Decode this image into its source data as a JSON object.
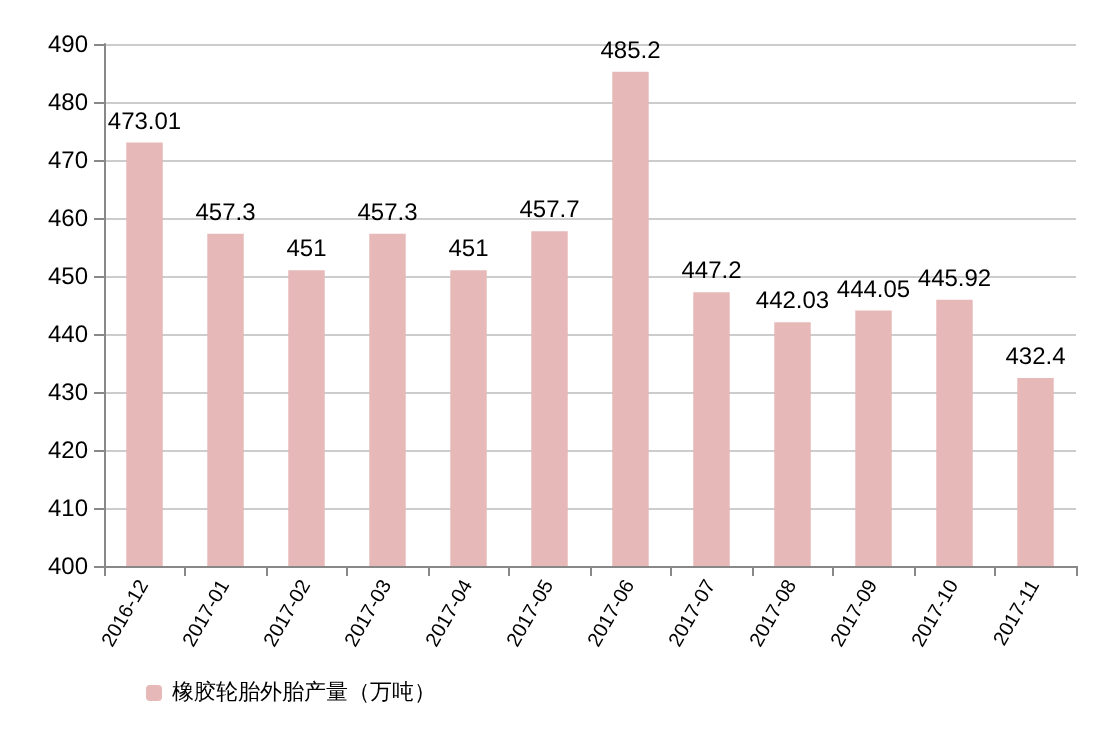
{
  "chart_data": {
    "type": "bar",
    "categories": [
      "2016-12",
      "2017-01",
      "2017-02",
      "2017-03",
      "2017-04",
      "2017-05",
      "2017-06",
      "2017-07",
      "2017-08",
      "2017-09",
      "2017-10",
      "2017-11"
    ],
    "series": [
      {
        "name": "橡胶轮胎外胎产量（万吨）",
        "color": "#e6b9b8",
        "values": [
          473.01,
          457.3,
          451,
          457.3,
          451,
          457.7,
          485.2,
          447.2,
          442.03,
          444.05,
          445.92,
          432.4
        ]
      }
    ],
    "ylim": [
      400,
      490
    ],
    "yticks": [
      400,
      410,
      420,
      430,
      440,
      450,
      460,
      470,
      480,
      490
    ],
    "grid": "y",
    "legend": "bottom",
    "data_labels": true
  }
}
